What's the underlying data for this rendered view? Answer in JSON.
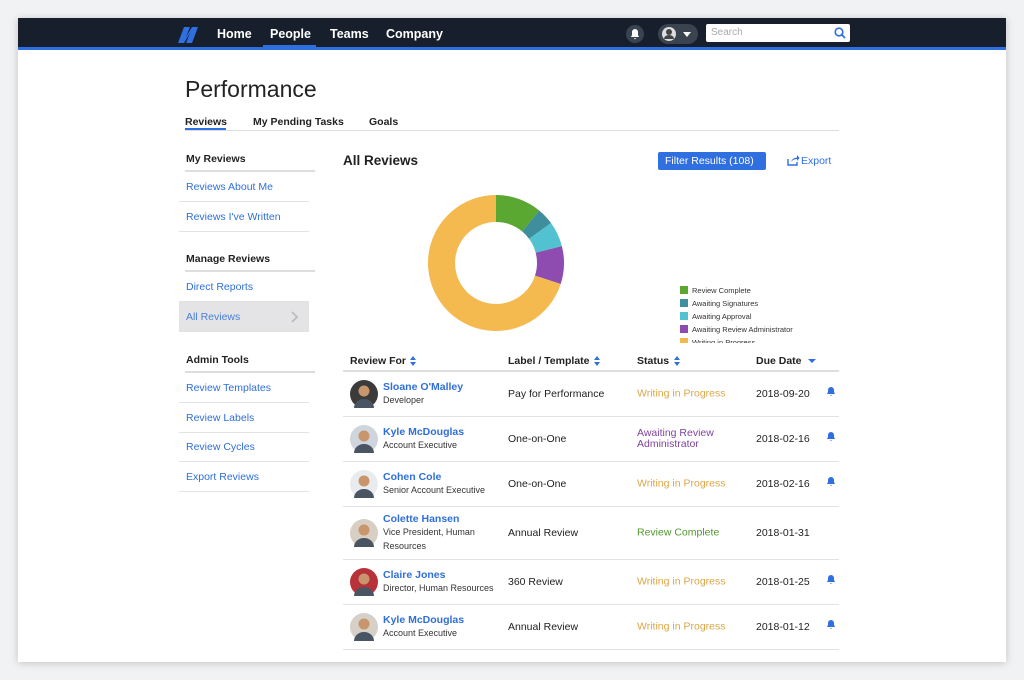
{
  "nav": {
    "items": [
      "Home",
      "People",
      "Teams",
      "Company"
    ],
    "search_placeholder": "Search"
  },
  "page": {
    "title": "Performance",
    "tabs": [
      "Reviews",
      "My Pending Tasks",
      "Goals"
    ]
  },
  "sidebar": {
    "sections": [
      {
        "heading": "My Reviews",
        "links": [
          "Reviews About Me",
          "Reviews I've Written"
        ]
      },
      {
        "heading": "Manage Reviews",
        "links": [
          "Direct Reports",
          "All Reviews"
        ]
      },
      {
        "heading": "Admin Tools",
        "links": [
          "Review Templates",
          "Review Labels",
          "Review Cycles",
          "Export Reviews"
        ]
      }
    ]
  },
  "main": {
    "heading": "All Reviews",
    "filter_button": "Filter Results (108)",
    "export": "Export"
  },
  "chart_data": {
    "type": "donut",
    "categories": [
      "Review Complete",
      "Awaiting Signatures",
      "Awaiting Approval",
      "Awaiting Review Administrator",
      "Writing in Progress"
    ],
    "values": [
      11,
      4,
      6,
      9,
      70
    ],
    "colors": [
      "#5aa832",
      "#3e8e9e",
      "#52c2d0",
      "#8e4bb0",
      "#f4b94f"
    ]
  },
  "table": {
    "columns": [
      "Review For",
      "Label / Template",
      "Status",
      "Due Date"
    ],
    "rows": [
      {
        "name": "Sloane O'Malley",
        "role": "Developer",
        "template": "Pay for Performance",
        "status": "Writing in Progress",
        "due": "2018-09-20",
        "reminder": true
      },
      {
        "name": "Kyle McDouglas",
        "role": "Account Executive",
        "template": "One-on-One",
        "status": "Awaiting Review Administrator",
        "due": "2018-02-16",
        "reminder": true
      },
      {
        "name": "Cohen Cole",
        "role": "Senior Account Executive",
        "template": "One-on-One",
        "status": "Writing in Progress",
        "due": "2018-02-16",
        "reminder": true
      },
      {
        "name": "Colette Hansen",
        "role": "Vice President, Human Resources",
        "template": "Annual Review",
        "status": "Review Complete",
        "due": "2018-01-31",
        "reminder": false
      },
      {
        "name": "Claire Jones",
        "role": "Director, Human Resources",
        "template": "360 Review",
        "status": "Writing in Progress",
        "due": "2018-01-25",
        "reminder": true
      },
      {
        "name": "Kyle McDouglas",
        "role": "Account Executive",
        "template": "Annual Review",
        "status": "Writing in Progress",
        "due": "2018-01-12",
        "reminder": true
      }
    ]
  }
}
